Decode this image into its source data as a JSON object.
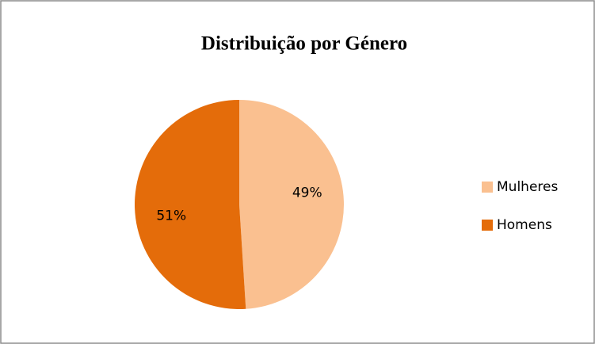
{
  "chart_data": {
    "type": "pie",
    "title": "Distribuição por Género",
    "categories": [
      "Mulheres",
      "Homens"
    ],
    "values": [
      49,
      51
    ],
    "value_labels": [
      "49%",
      "51%"
    ],
    "colors": [
      "#FAC090",
      "#E46C0A"
    ],
    "legend": "right"
  }
}
